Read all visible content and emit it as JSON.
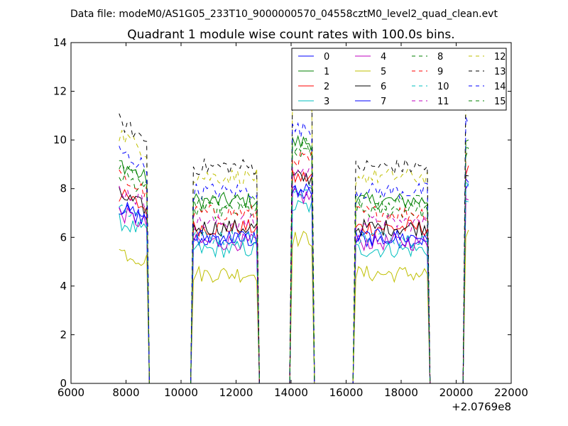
{
  "page": {
    "suptitle": "Data file: modeM0/AS1G05_233T10_9000000570_04558cztM0_level2_quad_clean.evt"
  },
  "chart_data": {
    "type": "line",
    "title": "Quadrant 1 module wise count rates with 100.0s bins.",
    "xlabel": "",
    "ylabel": "",
    "x_offset_label": "+2.0769e8",
    "xlim": [
      6000,
      22000
    ],
    "ylim": [
      0,
      14
    ],
    "x_ticks": [
      6000,
      8000,
      10000,
      12000,
      14000,
      16000,
      18000,
      20000,
      22000
    ],
    "y_ticks": [
      0,
      2,
      4,
      6,
      8,
      10,
      12,
      14
    ],
    "grid": false,
    "legend_position": "top-right",
    "legend_columns": 4,
    "x_note": "x values are in seconds relative to the offset 2.0769e8",
    "series": [
      {
        "name": "0",
        "color": "#0000ff",
        "dash": "solid",
        "level": 5.9
      },
      {
        "name": "1",
        "color": "#008000",
        "dash": "solid",
        "level": 7.5
      },
      {
        "name": "2",
        "color": "#ff0000",
        "dash": "solid",
        "level": 6.4
      },
      {
        "name": "3",
        "color": "#00bfbf",
        "dash": "solid",
        "level": 5.5
      },
      {
        "name": "4",
        "color": "#bf00bf",
        "dash": "solid",
        "level": 5.8
      },
      {
        "name": "5",
        "color": "#bfbf00",
        "dash": "solid",
        "level": 4.5
      },
      {
        "name": "6",
        "color": "#000000",
        "dash": "solid",
        "level": 6.4
      },
      {
        "name": "7",
        "color": "#0000ff",
        "dash": "solid",
        "level": 6.0
      },
      {
        "name": "8",
        "color": "#008000",
        "dash": "dashed",
        "level": 7.1
      },
      {
        "name": "9",
        "color": "#ff0000",
        "dash": "dashed",
        "level": 7.0
      },
      {
        "name": "10",
        "color": "#00bfbf",
        "dash": "dashed",
        "level": 6.0
      },
      {
        "name": "11",
        "color": "#bf00bf",
        "dash": "dashed",
        "level": 6.6
      },
      {
        "name": "12",
        "color": "#bfbf00",
        "dash": "dashed",
        "level": 8.5
      },
      {
        "name": "13",
        "color": "#000000",
        "dash": "dashed",
        "level": 8.9
      },
      {
        "name": "14",
        "color": "#0000ff",
        "dash": "dashed",
        "level": 7.9
      },
      {
        "name": "15",
        "color": "#008000",
        "dash": "dashed",
        "level": 7.4
      }
    ],
    "segments": [
      {
        "x_start": 7750,
        "x_end": 8750,
        "multiplier": 1.12
      },
      {
        "x_start": 10450,
        "x_end": 12750,
        "multiplier": 1.0
      },
      {
        "x_start": 14050,
        "x_end": 14750,
        "multiplier": 1.32
      },
      {
        "x_start": 16350,
        "x_end": 18950,
        "multiplier": 1.0
      },
      {
        "x_start": 20350,
        "x_end": 20450,
        "multiplier": 1.35
      }
    ],
    "zero_intervals": [
      [
        8850,
        10350
      ],
      [
        12850,
        13950
      ],
      [
        14850,
        16250
      ],
      [
        19050,
        20250
      ]
    ]
  }
}
